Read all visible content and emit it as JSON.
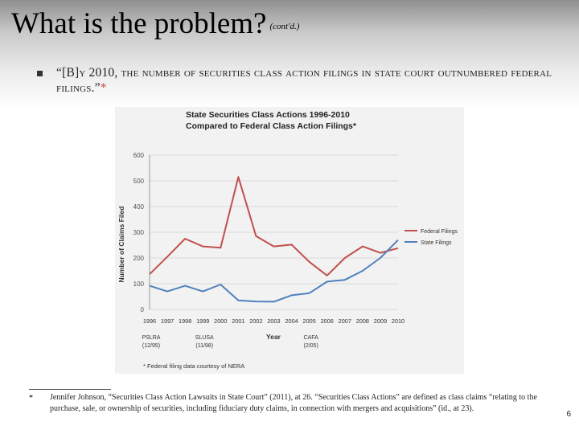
{
  "slide": {
    "title": "What is the problem?",
    "title_suffix": "(cont'd.)",
    "bullet": "“[B]y 2010, the number of securities class action filings in state court outnumbered federal filings.”",
    "bullet_star": "*",
    "footnote_marker": "*",
    "footnote": "Jennifer Johnson, “Securities Class Action Lawsuits in State Court” (2011), at 26. “Securities Class Actions” are defined as class claims “relating to the purchase, sale, or ownership of securities, including fiduciary duty claims, in connection with mergers and acquisitions” (id., at 23).",
    "page_number": "6"
  },
  "chart_data": {
    "type": "line",
    "title": "State Securities Class Actions 1996-2010",
    "subtitle": "Compared to Federal Class Action Filings*",
    "xlabel": "Year",
    "ylabel": "Number of Claims Filed",
    "ylim": [
      0,
      600
    ],
    "yticks": [
      0,
      100,
      200,
      300,
      400,
      500,
      600
    ],
    "x": [
      "1996",
      "1997",
      "1998",
      "1999",
      "2000",
      "2001",
      "2002",
      "2003",
      "2004",
      "2005",
      "2006",
      "2007",
      "2008",
      "2009",
      "2010"
    ],
    "series": [
      {
        "name": "Federal Filings",
        "color": "#c0504d",
        "values": [
          137,
          205,
          275,
          245,
          240,
          515,
          285,
          245,
          252,
          185,
          132,
          200,
          245,
          220,
          238
        ]
      },
      {
        "name": "State Filings",
        "color": "#4f81bd",
        "values": [
          92,
          70,
          92,
          70,
          97,
          35,
          31,
          30,
          55,
          63,
          108,
          115,
          150,
          200,
          270
        ]
      }
    ],
    "legend_position": "right",
    "annotations": [
      {
        "label": "PSLRA",
        "sub": "(12/95)",
        "year": "1996"
      },
      {
        "label": "SLUSA",
        "sub": "(11/98)",
        "year": "1999"
      },
      {
        "label": "CAFA",
        "sub": "(2/05)",
        "year": "2005"
      }
    ],
    "source_note": "* Federal filing data courtesy of NERA"
  }
}
